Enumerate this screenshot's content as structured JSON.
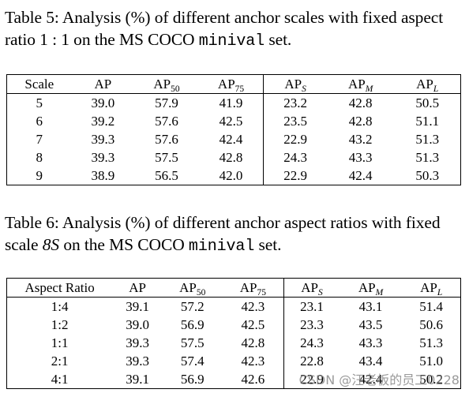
{
  "table5": {
    "caption_prefix": "Table 5: Analysis (%) of different anchor scales with fixed aspect ratio 1 : 1 on the MS COCO ",
    "caption_mono": "minival",
    "caption_suffix": " set.",
    "headers": {
      "scale": "Scale",
      "ap": "AP",
      "ap50_base": "AP",
      "ap50_sub": "50",
      "ap75_base": "AP",
      "ap75_sub": "75",
      "aps_base": "AP",
      "aps_sub": "S",
      "apm_base": "AP",
      "apm_sub": "M",
      "apl_base": "AP",
      "apl_sub": "L"
    },
    "rows": [
      {
        "key": "5",
        "ap": "39.0",
        "ap50": "57.9",
        "ap75": "41.9",
        "aps": "23.2",
        "apm": "42.8",
        "apl": "50.5"
      },
      {
        "key": "6",
        "ap": "39.2",
        "ap50": "57.6",
        "ap75": "42.5",
        "aps": "23.5",
        "apm": "42.8",
        "apl": "51.1"
      },
      {
        "key": "7",
        "ap": "39.3",
        "ap50": "57.6",
        "ap75": "42.4",
        "aps": "22.9",
        "apm": "43.2",
        "apl": "51.3"
      },
      {
        "key": "8",
        "ap": "39.3",
        "ap50": "57.5",
        "ap75": "42.8",
        "aps": "24.3",
        "apm": "43.3",
        "apl": "51.3"
      },
      {
        "key": "9",
        "ap": "38.9",
        "ap50": "56.5",
        "ap75": "42.0",
        "aps": "22.9",
        "apm": "42.4",
        "apl": "50.3"
      }
    ]
  },
  "table6": {
    "caption_prefix": "Table 6: Analysis (%) of different anchor aspect ratios with fixed scale ",
    "caption_italic": "8S",
    "caption_middle": " on the MS COCO ",
    "caption_mono": "minival",
    "caption_suffix": " set.",
    "headers": {
      "ratio": "Aspect Ratio",
      "ap": "AP",
      "ap50_base": "AP",
      "ap50_sub": "50",
      "ap75_base": "AP",
      "ap75_sub": "75",
      "aps_base": "AP",
      "aps_sub": "S",
      "apm_base": "AP",
      "apm_sub": "M",
      "apl_base": "AP",
      "apl_sub": "L"
    },
    "rows": [
      {
        "key": "1:4",
        "ap": "39.1",
        "ap50": "57.2",
        "ap75": "42.3",
        "aps": "23.1",
        "apm": "43.1",
        "apl": "51.4"
      },
      {
        "key": "1:2",
        "ap": "39.0",
        "ap50": "56.9",
        "ap75": "42.5",
        "aps": "23.3",
        "apm": "43.5",
        "apl": "50.6"
      },
      {
        "key": "1:1",
        "ap": "39.3",
        "ap50": "57.5",
        "ap75": "42.8",
        "aps": "24.3",
        "apm": "43.3",
        "apl": "51.3"
      },
      {
        "key": "2:1",
        "ap": "39.3",
        "ap50": "57.4",
        "ap75": "42.3",
        "aps": "22.8",
        "apm": "43.4",
        "apl": "51.0"
      },
      {
        "key": "4:1",
        "ap": "39.1",
        "ap50": "56.9",
        "ap75": "42.6",
        "aps": "22.9",
        "apm": "42.4",
        "apl": "50.2"
      }
    ]
  },
  "watermark": "CSDN @汪老板的员工0228"
}
